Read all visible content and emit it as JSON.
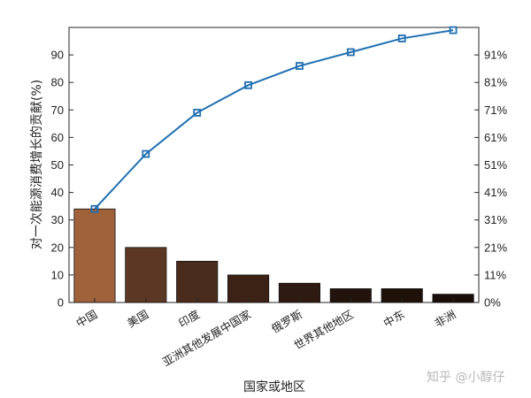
{
  "chart_data": {
    "type": "bar",
    "categories": [
      "中国",
      "美国",
      "印度",
      "亚洲其他发展中国家",
      "俄罗斯",
      "世界其他地区",
      "中东",
      "非洲"
    ],
    "series": [
      {
        "type": "bar",
        "values": [
          34,
          20,
          15,
          10,
          7,
          5,
          5,
          3
        ],
        "colors": [
          "#a0623b",
          "#5c3824",
          "#4a2c1c",
          "#3b2215",
          "#2e1a10",
          "#22140d",
          "#1e110a",
          "#1a0e08"
        ]
      },
      {
        "type": "line",
        "axis": "right",
        "values": [
          34,
          54,
          69,
          79,
          86,
          91,
          96,
          99
        ],
        "color": "#1f6fb2"
      }
    ],
    "xlabel": "国家或地区",
    "ylabel": "对一次能源消费增长的贡献(%)",
    "ylim": [
      0,
      100
    ],
    "yticks": [
      0,
      10,
      20,
      30,
      40,
      50,
      60,
      70,
      80,
      90
    ],
    "y2ticks": [
      "0%",
      "11%",
      "21%",
      "31%",
      "41%",
      "51%",
      "61%",
      "71%",
      "81%",
      "91%"
    ],
    "grid": false
  },
  "watermark": "知乎 @小醇仔"
}
